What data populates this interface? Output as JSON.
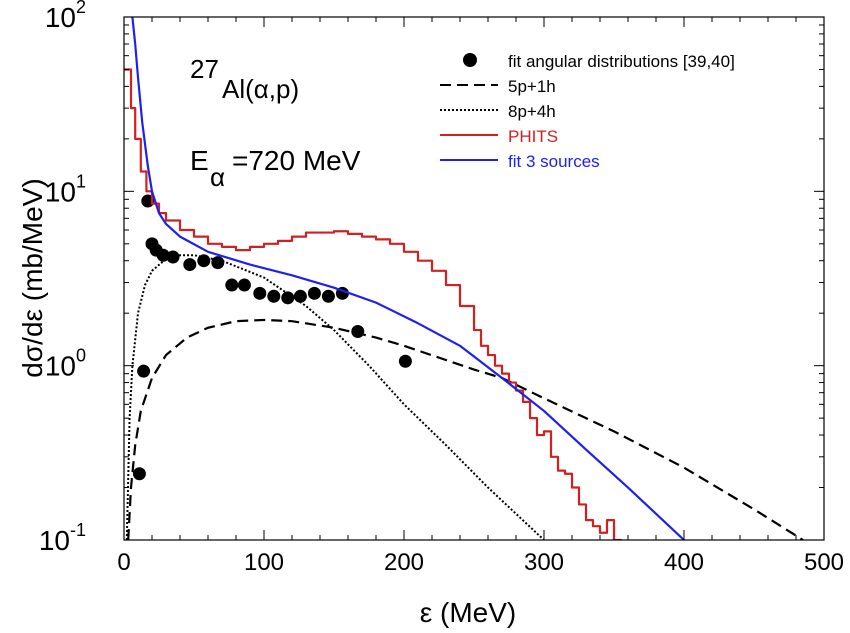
{
  "chart_data": {
    "type": "line",
    "xlabel": "ε (MeV)",
    "ylabel": "dσ/dε (mb/MeV)",
    "xlim": [
      0,
      500
    ],
    "ylim": [
      0.1,
      100
    ],
    "yscale": "log",
    "xticks": [
      "0",
      "100",
      "200",
      "300",
      "400",
      "500"
    ],
    "yticks": [
      {
        "base": "10",
        "exp": "-1"
      },
      {
        "base": "10",
        "exp": "0"
      },
      {
        "base": "10",
        "exp": "1"
      },
      {
        "base": "10",
        "exp": "2"
      }
    ],
    "annotations": {
      "reaction_mass": "27",
      "reaction": "Al(α,p)",
      "energy_E": "E",
      "energy_sub": "α",
      "energy_value": "=720 MeV"
    },
    "legend_position": "top-right",
    "series": [
      {
        "name": "fit angular distributions [39,40]",
        "style": "markers",
        "color": "#000000",
        "points": [
          [
            11,
            0.24
          ],
          [
            14,
            0.93
          ],
          [
            17,
            8.8
          ],
          [
            20,
            5.0
          ],
          [
            23,
            4.6
          ],
          [
            28,
            4.3
          ],
          [
            35,
            4.2
          ],
          [
            47,
            3.8
          ],
          [
            57,
            4.0
          ],
          [
            67,
            3.9
          ],
          [
            77,
            2.9
          ],
          [
            86,
            2.9
          ],
          [
            97,
            2.6
          ],
          [
            107,
            2.5
          ],
          [
            117,
            2.45
          ],
          [
            126,
            2.5
          ],
          [
            136,
            2.6
          ],
          [
            146,
            2.5
          ],
          [
            156,
            2.6
          ],
          [
            167,
            1.57
          ],
          [
            201,
            1.06
          ]
        ]
      },
      {
        "name": "5p+1h",
        "style": "dashed",
        "color": "#000000",
        "points": [
          [
            3,
            0.1
          ],
          [
            5,
            0.2
          ],
          [
            8,
            0.35
          ],
          [
            12,
            0.55
          ],
          [
            20,
            0.85
          ],
          [
            30,
            1.15
          ],
          [
            45,
            1.45
          ],
          [
            60,
            1.65
          ],
          [
            80,
            1.8
          ],
          [
            100,
            1.83
          ],
          [
            120,
            1.8
          ],
          [
            150,
            1.65
          ],
          [
            180,
            1.45
          ],
          [
            200,
            1.3
          ],
          [
            250,
            0.95
          ],
          [
            270,
            0.85
          ],
          [
            300,
            0.65
          ],
          [
            350,
            0.42
          ],
          [
            400,
            0.26
          ],
          [
            450,
            0.15
          ],
          [
            485,
            0.1
          ]
        ]
      },
      {
        "name": "8p+4h",
        "style": "dotted",
        "color": "#000000",
        "points": [
          [
            2,
            0.1
          ],
          [
            4,
            0.5
          ],
          [
            6,
            1.0
          ],
          [
            10,
            2.0
          ],
          [
            15,
            2.9
          ],
          [
            20,
            3.5
          ],
          [
            30,
            4.1
          ],
          [
            40,
            4.3
          ],
          [
            50,
            4.3
          ],
          [
            70,
            4.0
          ],
          [
            100,
            3.2
          ],
          [
            130,
            2.2
          ],
          [
            150,
            1.6
          ],
          [
            175,
            1.0
          ],
          [
            200,
            0.6
          ],
          [
            230,
            0.35
          ],
          [
            260,
            0.2
          ],
          [
            300,
            0.1
          ]
        ]
      },
      {
        "name": "PHITS",
        "style": "histogram",
        "color": "#d02020",
        "points": [
          [
            0,
            50
          ],
          [
            5,
            30
          ],
          [
            8,
            20
          ],
          [
            12,
            13
          ],
          [
            16,
            10
          ],
          [
            20,
            8.5
          ],
          [
            25,
            7.5
          ],
          [
            30,
            6.8
          ],
          [
            40,
            6.0
          ],
          [
            50,
            5.5
          ],
          [
            60,
            5.0
          ],
          [
            70,
            4.8
          ],
          [
            80,
            4.6
          ],
          [
            90,
            4.8
          ],
          [
            100,
            5.0
          ],
          [
            110,
            5.2
          ],
          [
            120,
            5.5
          ],
          [
            130,
            5.8
          ],
          [
            140,
            5.8
          ],
          [
            150,
            5.9
          ],
          [
            160,
            5.7
          ],
          [
            170,
            5.5
          ],
          [
            180,
            5.3
          ],
          [
            190,
            5.0
          ],
          [
            200,
            4.5
          ],
          [
            210,
            4.0
          ],
          [
            220,
            3.5
          ],
          [
            230,
            2.9
          ],
          [
            240,
            2.2
          ],
          [
            250,
            1.6
          ],
          [
            255,
            1.3
          ],
          [
            260,
            1.15
          ],
          [
            265,
            1.0
          ],
          [
            270,
            0.9
          ],
          [
            275,
            0.8
          ],
          [
            280,
            0.72
          ],
          [
            285,
            0.62
          ],
          [
            290,
            0.5
          ],
          [
            295,
            0.4
          ],
          [
            300,
            0.42
          ],
          [
            305,
            0.3
          ],
          [
            310,
            0.25
          ],
          [
            315,
            0.24
          ],
          [
            320,
            0.2
          ],
          [
            325,
            0.16
          ],
          [
            330,
            0.13
          ],
          [
            335,
            0.12
          ],
          [
            340,
            0.11
          ],
          [
            345,
            0.13
          ],
          [
            350,
            0.1
          ]
        ]
      },
      {
        "name": "fit 3 sources",
        "style": "solid",
        "color": "#2020ee",
        "points": [
          [
            6,
            100
          ],
          [
            8,
            70
          ],
          [
            10,
            45
          ],
          [
            13,
            25
          ],
          [
            17,
            14
          ],
          [
            20,
            10
          ],
          [
            25,
            7.5
          ],
          [
            30,
            6.5
          ],
          [
            40,
            5.5
          ],
          [
            60,
            4.5
          ],
          [
            90,
            3.8
          ],
          [
            120,
            3.3
          ],
          [
            150,
            2.8
          ],
          [
            180,
            2.3
          ],
          [
            210,
            1.75
          ],
          [
            240,
            1.3
          ],
          [
            270,
            0.85
          ],
          [
            300,
            0.55
          ],
          [
            330,
            0.33
          ],
          [
            360,
            0.2
          ],
          [
            400,
            0.1
          ]
        ]
      }
    ]
  }
}
